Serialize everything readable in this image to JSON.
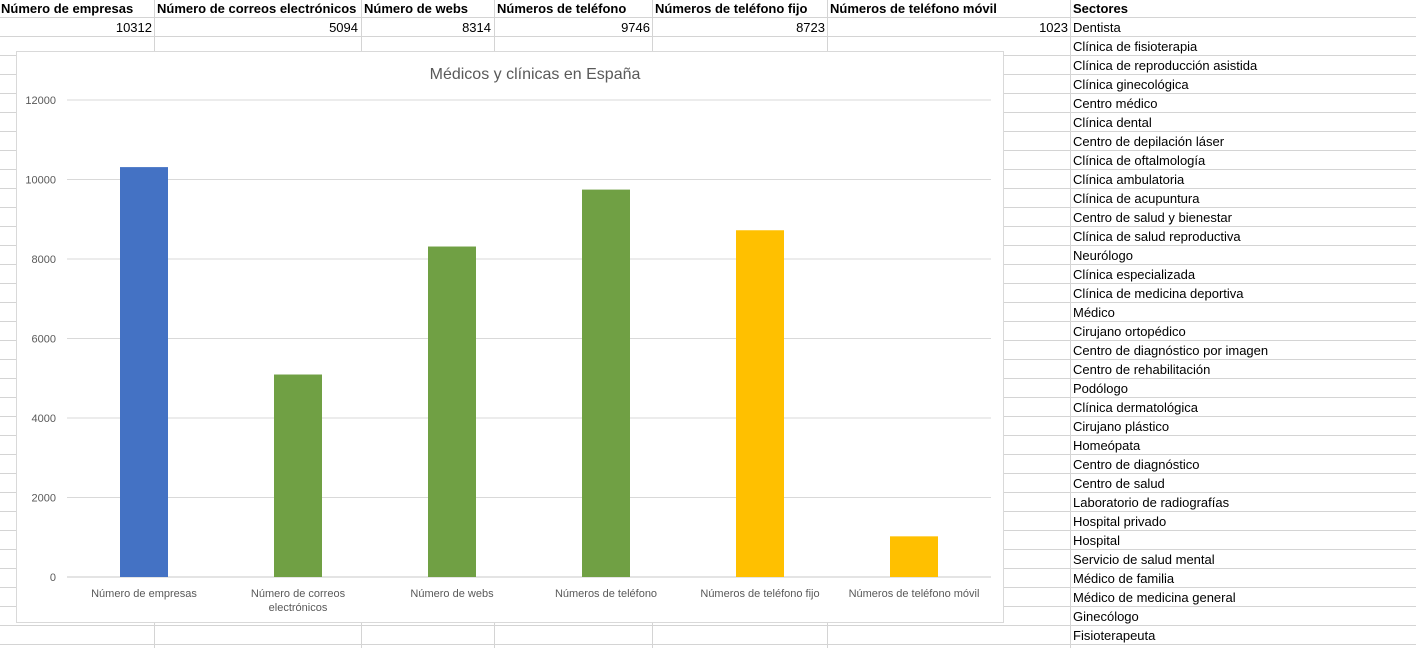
{
  "spreadsheet": {
    "headers": [
      "Número de empresas",
      "Número de correos electrónicos",
      "Número de webs",
      "Números de teléfono",
      "Números de teléfono fijo",
      "Números de teléfono móvil",
      "Sectores"
    ],
    "values": [
      "10312",
      "5094",
      "8314",
      "9746",
      "8723",
      "1023"
    ],
    "sectors": [
      "Dentista",
      "Clínica de fisioterapia",
      "Clínica de reproducción asistida",
      "Clínica ginecológica",
      "Centro médico",
      "Clínica dental",
      "Centro de depilación láser",
      "Clínica de oftalmología",
      "Clínica ambulatoria",
      "Clínica de acupuntura",
      "Centro de salud y bienestar",
      "Clínica de salud reproductiva",
      "Neurólogo",
      "Clínica especializada",
      "Clínica de medicina deportiva",
      "Médico",
      "Cirujano ortopédico",
      "Centro de diagnóstico por imagen",
      "Centro de rehabilitación",
      "Podólogo",
      "Clínica dermatológica",
      "Cirujano plástico",
      "Homeópata",
      "Centro de diagnóstico",
      "Centro de salud",
      "Laboratorio de radiografías",
      "Hospital privado",
      "Hospital",
      "Servicio de salud mental",
      "Médico de familia",
      "Médico de medicina general",
      "Ginecólogo",
      "Fisioterapeuta"
    ]
  },
  "chart_data": {
    "type": "bar",
    "title": "Médicos y clínicas en España",
    "xlabel": "",
    "ylabel": "",
    "ylim": [
      0,
      12000
    ],
    "yticks": [
      0,
      2000,
      4000,
      6000,
      8000,
      10000,
      12000
    ],
    "grid": true,
    "legend": "none",
    "categories": [
      [
        "Número de empresas"
      ],
      [
        "Número de correos",
        "electrónicos"
      ],
      [
        "Número de webs"
      ],
      [
        "Números de teléfono"
      ],
      [
        "Números de teléfono fijo"
      ],
      [
        "Números de teléfono móvil"
      ]
    ],
    "values": [
      10312,
      5094,
      8314,
      9746,
      8723,
      1023
    ],
    "colors": [
      "#4472c4",
      "#70a044",
      "#70a044",
      "#70a044",
      "#ffc000",
      "#ffc000"
    ]
  }
}
